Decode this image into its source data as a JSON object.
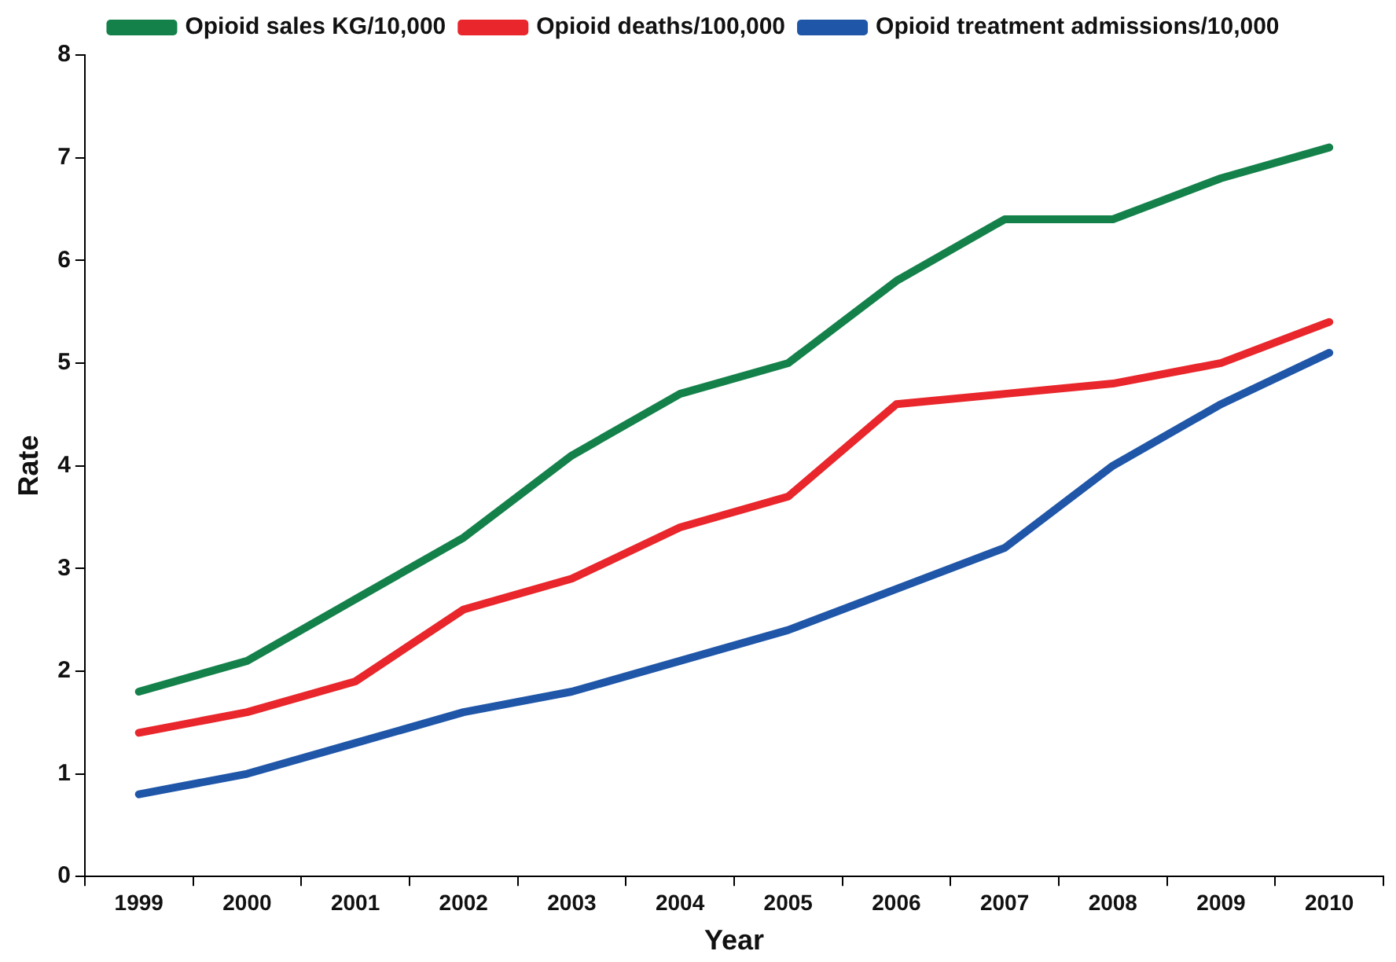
{
  "chart_data": {
    "type": "line",
    "xlabel": "Year",
    "ylabel": "Rate",
    "categories": [
      "1999",
      "2000",
      "2001",
      "2002",
      "2003",
      "2004",
      "2005",
      "2006",
      "2007",
      "2008",
      "2009",
      "2010"
    ],
    "series": [
      {
        "name": "Opioid sales KG/10,000",
        "color": "#14814a",
        "values": [
          1.8,
          2.1,
          2.7,
          3.3,
          4.1,
          4.7,
          5.0,
          5.8,
          6.4,
          6.4,
          6.8,
          7.1
        ]
      },
      {
        "name": "Opioid deaths/100,000",
        "color": "#e8262b",
        "values": [
          1.4,
          1.6,
          1.9,
          2.6,
          2.9,
          3.4,
          3.7,
          4.6,
          4.7,
          4.8,
          5.0,
          5.4
        ]
      },
      {
        "name": "Opioid treatment admissions/10,000",
        "color": "#1f56a8",
        "values": [
          0.8,
          1.0,
          1.3,
          1.6,
          1.8,
          2.1,
          2.4,
          2.8,
          3.2,
          4.0,
          4.6,
          5.1
        ]
      }
    ],
    "ylim": [
      0,
      8
    ],
    "yticks": [
      0,
      1,
      2,
      3,
      4,
      5,
      6,
      7,
      8
    ],
    "grid": false,
    "legend": "top",
    "marker": "none",
    "line_style": "solid"
  }
}
